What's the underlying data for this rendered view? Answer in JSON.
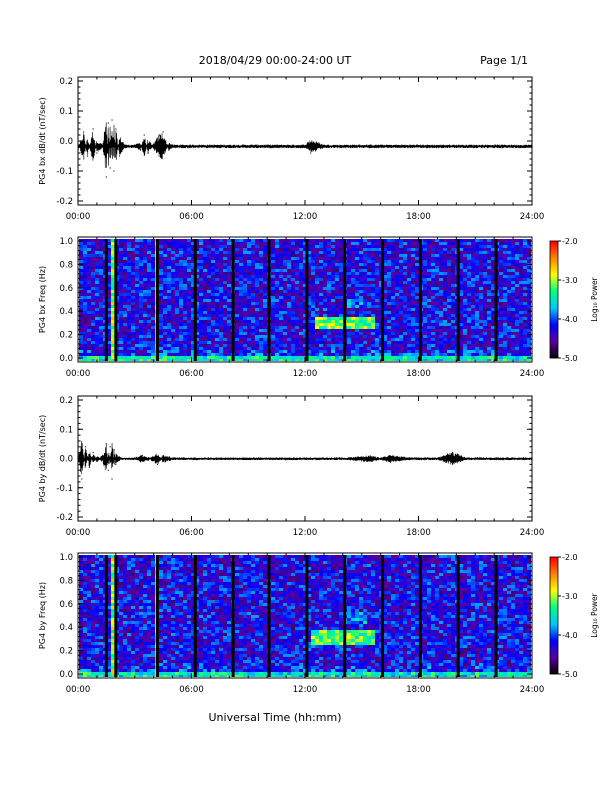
{
  "header": {
    "title": "2018/04/29  00:00-24:00 UT",
    "page_label": "Page 1/1"
  },
  "footer": {
    "xlabel": "Universal Time (hh:mm)"
  },
  "colorbar": {
    "label": "Log₁₀ Power",
    "ticks": [
      "-2.0",
      "-3.0",
      "-4.0",
      "-5.0"
    ],
    "tick_values": [
      -2.0,
      -3.0,
      -4.0,
      -5.0
    ],
    "range": [
      -5.0,
      -2.0
    ],
    "colors": [
      "#000000",
      "#5a00a0",
      "#0000ff",
      "#00c8ff",
      "#00ff80",
      "#ffff00",
      "#ff8000",
      "#ff0000"
    ]
  },
  "chart_data": [
    {
      "type": "line",
      "ylabel": "PG4 bx dB/dt (nT/sec)",
      "x_ticks": [
        "00:00",
        "06:00",
        "12:00",
        "18:00",
        "24:00"
      ],
      "y_ticks": [
        "0.2",
        "0.1",
        "0.0",
        "-0.1",
        "-0.2"
      ],
      "xlim": [
        0,
        24
      ],
      "ylim": [
        -0.2,
        0.2
      ],
      "series": [
        {
          "x": [
            0.0,
            0.3,
            0.5,
            0.8,
            1.0,
            1.3,
            1.5,
            1.6,
            1.7,
            1.8,
            1.9,
            2.0,
            2.2,
            2.5,
            3.0,
            3.3,
            3.5,
            3.7,
            4.0,
            4.3,
            4.5,
            4.8,
            5.0,
            6.0,
            8.0,
            10.0,
            11.0,
            12.0,
            12.3,
            13.0,
            14.0,
            15.0,
            16.0,
            18.0,
            20.0,
            22.0,
            24.0
          ],
          "y": [
            -0.03,
            0.03,
            -0.05,
            0.04,
            -0.04,
            -0.02,
            -0.12,
            0.06,
            -0.09,
            0.07,
            -0.1,
            0.04,
            -0.05,
            -0.02,
            -0.02,
            -0.03,
            0.02,
            -0.04,
            -0.01,
            0.02,
            0.03,
            -0.03,
            -0.02,
            -0.02,
            -0.02,
            -0.02,
            -0.02,
            -0.02,
            -0.04,
            -0.02,
            -0.02,
            -0.02,
            -0.02,
            -0.02,
            -0.02,
            -0.02,
            -0.02
          ]
        }
      ]
    },
    {
      "type": "heatmap",
      "ylabel": "PG4 bx Freq (Hz)",
      "x_ticks": [
        "00:00",
        "06:00",
        "12:00",
        "18:00",
        "24:00"
      ],
      "y_ticks": [
        "1.0",
        "0.8",
        "0.6",
        "0.4",
        "0.2",
        "0.0"
      ],
      "xlim": [
        0,
        24
      ],
      "ylim": [
        0.0,
        1.0
      ],
      "zlim": [
        -5.0,
        -2.0
      ],
      "gap_hours": [
        1.5,
        2.0,
        4.2,
        6.2,
        8.2,
        10.1,
        12.1,
        14.1,
        16.1,
        18.1,
        20.1,
        22.1
      ],
      "bright_columns": [
        1.7,
        4.0
      ],
      "features": [
        {
          "x_range": [
            12.5,
            15.5
          ],
          "y_range": [
            0.28,
            0.38
          ],
          "level": -3.2
        },
        {
          "x_range": [
            14.2,
            15.0
          ],
          "y_range": [
            0.45,
            0.52
          ],
          "level": -3.8
        },
        {
          "x_range": [
            0.0,
            24.0
          ],
          "y_range": [
            0.0,
            0.05
          ],
          "level": -3.5
        }
      ]
    },
    {
      "type": "line",
      "ylabel": "PG4 by dB/dt (nT/sec)",
      "x_ticks": [
        "00:00",
        "06:00",
        "12:00",
        "18:00",
        "24:00"
      ],
      "y_ticks": [
        "0.2",
        "0.1",
        "0.0",
        "-0.1",
        "-0.2"
      ],
      "xlim": [
        0,
        24
      ],
      "ylim": [
        -0.2,
        0.2
      ],
      "series": [
        {
          "x": [
            0.0,
            0.2,
            0.4,
            0.6,
            0.8,
            1.0,
            1.3,
            1.5,
            1.6,
            1.7,
            1.8,
            1.9,
            2.0,
            2.3,
            2.6,
            3.0,
            3.4,
            3.8,
            4.2,
            4.5,
            5.0,
            6.0,
            8.0,
            10.0,
            12.0,
            14.0,
            15.5,
            16.5,
            17.5,
            18.0,
            19.0,
            19.8,
            20.5,
            22.0,
            24.0
          ],
          "y": [
            0.0,
            -0.07,
            0.04,
            -0.03,
            0.02,
            -0.01,
            0.01,
            0.05,
            -0.04,
            0.04,
            -0.07,
            0.03,
            -0.02,
            0.0,
            0.0,
            0.0,
            0.01,
            0.0,
            -0.02,
            0.01,
            0.0,
            0.0,
            0.0,
            0.0,
            0.0,
            0.0,
            -0.01,
            0.01,
            0.0,
            0.0,
            0.0,
            0.02,
            0.0,
            0.0,
            0.0
          ]
        }
      ]
    },
    {
      "type": "heatmap",
      "ylabel": "PG4 by Freq (Hz)",
      "x_ticks": [
        "00:00",
        "06:00",
        "12:00",
        "18:00",
        "24:00"
      ],
      "y_ticks": [
        "1.0",
        "0.8",
        "0.6",
        "0.4",
        "0.2",
        "0.0"
      ],
      "xlim": [
        0,
        24
      ],
      "ylim": [
        0.0,
        1.0
      ],
      "zlim": [
        -5.0,
        -2.0
      ],
      "gap_hours": [
        1.5,
        2.0,
        4.2,
        6.2,
        8.2,
        10.1,
        12.1,
        14.1,
        16.1,
        18.1,
        20.1,
        22.1
      ],
      "bright_columns": [
        1.7,
        4.0
      ],
      "features": [
        {
          "x_range": [
            12.3,
            15.5
          ],
          "y_range": [
            0.28,
            0.4
          ],
          "level": -3.2
        },
        {
          "x_range": [
            13.8,
            15.2
          ],
          "y_range": [
            0.45,
            0.55
          ],
          "level": -3.8
        },
        {
          "x_range": [
            0.0,
            24.0
          ],
          "y_range": [
            0.0,
            0.06
          ],
          "level": -3.5
        }
      ]
    }
  ]
}
